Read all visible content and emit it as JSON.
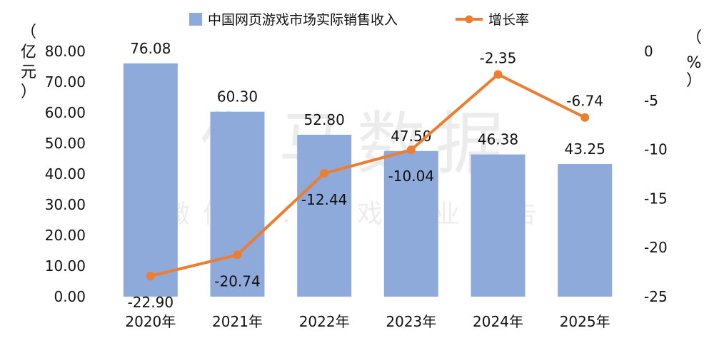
{
  "watermark": {
    "main": "伽马数据",
    "sub": "微信号：游戏产业报告"
  },
  "chart_data": {
    "type": "bar+line",
    "categories": [
      "2020年",
      "2021年",
      "2022年",
      "2023年",
      "2024年",
      "2025年"
    ],
    "bar_series": {
      "name": "中国网页游戏市场实际销售收入",
      "values": [
        76.08,
        60.3,
        52.8,
        47.5,
        46.38,
        43.25
      ],
      "labels": [
        "76.08",
        "60.30",
        "52.80",
        "47.50",
        "46.38",
        "43.25"
      ],
      "color": "#8eaadb"
    },
    "line_series": {
      "name": "增长率",
      "values": [
        -22.9,
        -20.74,
        -12.44,
        -10.04,
        -2.35,
        -6.74
      ],
      "labels": [
        "-22.90",
        "-20.74",
        "-12.44",
        "-10.04",
        "-2.35",
        "-6.74"
      ],
      "color": "#ed7d31"
    },
    "y_left": {
      "ylim": [
        0,
        80
      ],
      "ticks": [
        "0.00",
        "10.00",
        "20.00",
        "30.00",
        "40.00",
        "50.00",
        "60.00",
        "70.00",
        "80.00"
      ],
      "unit": [
        "（",
        "亿",
        "元",
        "）"
      ]
    },
    "y_right": {
      "ylim": [
        -25,
        0
      ],
      "ticks": [
        "0",
        "-5",
        "-10",
        "-15",
        "-20",
        "-25"
      ],
      "unit": [
        "（",
        "%",
        "）"
      ]
    },
    "legend_position": "top-center"
  }
}
